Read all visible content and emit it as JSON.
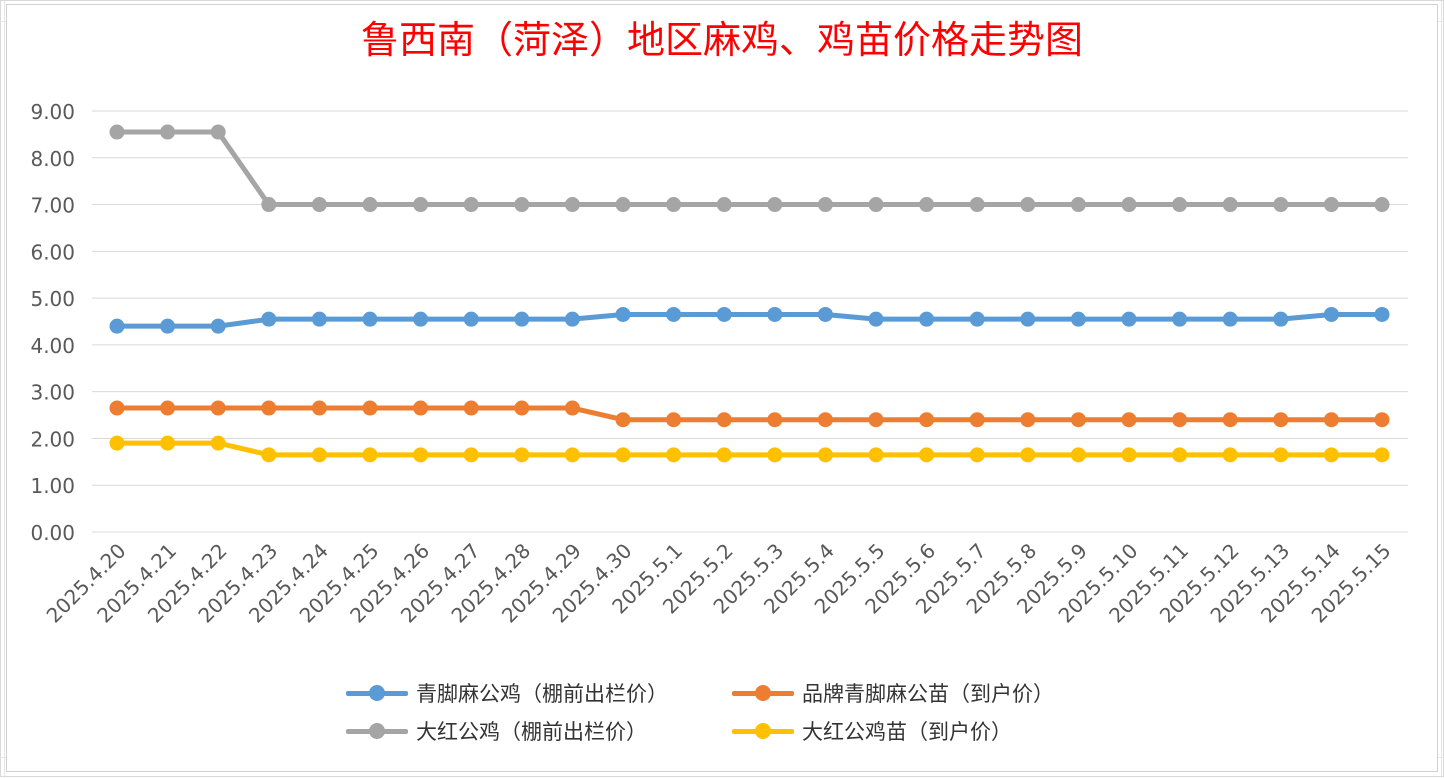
{
  "chart_data": {
    "type": "line",
    "title": "鲁西南（菏泽）地区麻鸡、鸡苗价格走势图",
    "xlabel": "",
    "ylabel": "",
    "ylim": [
      0,
      9
    ],
    "y_ticks": [
      "0.00",
      "1.00",
      "2.00",
      "3.00",
      "4.00",
      "5.00",
      "6.00",
      "7.00",
      "8.00",
      "9.00"
    ],
    "grid": "horizontal",
    "legend_position": "bottom",
    "categories": [
      "2025.4.20",
      "2025.4.21",
      "2025.4.22",
      "2025.4.23",
      "2025.4.24",
      "2025.4.25",
      "2025.4.26",
      "2025.4.27",
      "2025.4.28",
      "2025.4.29",
      "2025.4.30",
      "2025.5.1",
      "2025.5.2",
      "2025.5.3",
      "2025.5.4",
      "2025.5.5",
      "2025.5.6",
      "2025.5.7",
      "2025.5.8",
      "2025.5.9",
      "2025.5.10",
      "2025.5.11",
      "2025.5.12",
      "2025.5.13",
      "2025.5.14",
      "2025.5.15"
    ],
    "series": [
      {
        "name": "青脚麻公鸡（棚前出栏价）",
        "color": "#5b9bd5",
        "values": [
          4.4,
          4.4,
          4.4,
          4.55,
          4.55,
          4.55,
          4.55,
          4.55,
          4.55,
          4.55,
          4.65,
          4.65,
          4.65,
          4.65,
          4.65,
          4.55,
          4.55,
          4.55,
          4.55,
          4.55,
          4.55,
          4.55,
          4.55,
          4.55,
          4.65,
          4.65
        ]
      },
      {
        "name": "品牌青脚麻公苗（到户价）",
        "color": "#ed7d31",
        "values": [
          2.65,
          2.65,
          2.65,
          2.65,
          2.65,
          2.65,
          2.65,
          2.65,
          2.65,
          2.65,
          2.4,
          2.4,
          2.4,
          2.4,
          2.4,
          2.4,
          2.4,
          2.4,
          2.4,
          2.4,
          2.4,
          2.4,
          2.4,
          2.4,
          2.4,
          2.4
        ]
      },
      {
        "name": "大红公鸡（棚前出栏价）",
        "color": "#a5a5a5",
        "values": [
          8.55,
          8.55,
          8.55,
          7.0,
          7.0,
          7.0,
          7.0,
          7.0,
          7.0,
          7.0,
          7.0,
          7.0,
          7.0,
          7.0,
          7.0,
          7.0,
          7.0,
          7.0,
          7.0,
          7.0,
          7.0,
          7.0,
          7.0,
          7.0,
          7.0,
          7.0
        ]
      },
      {
        "name": "大红公鸡苗（到户价）",
        "color": "#ffc000",
        "values": [
          1.9,
          1.9,
          1.9,
          1.65,
          1.65,
          1.65,
          1.65,
          1.65,
          1.65,
          1.65,
          1.65,
          1.65,
          1.65,
          1.65,
          1.65,
          1.65,
          1.65,
          1.65,
          1.65,
          1.65,
          1.65,
          1.65,
          1.65,
          1.65,
          1.65,
          1.65
        ]
      }
    ]
  }
}
